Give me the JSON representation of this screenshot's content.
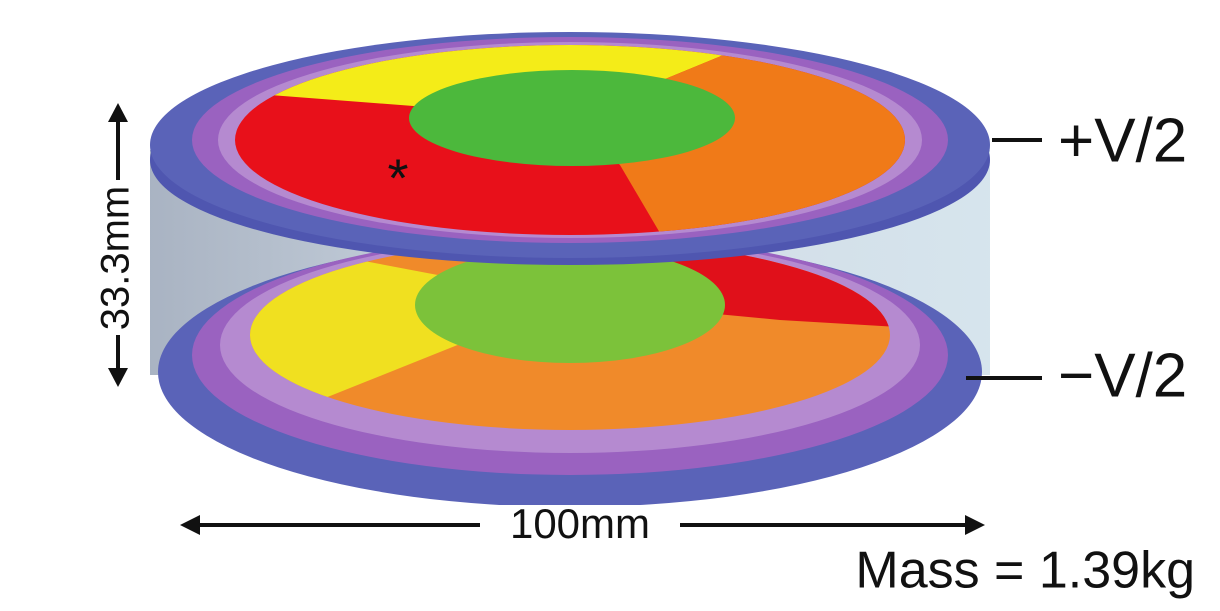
{
  "labels": {
    "height": "33.3mm",
    "top_voltage": "+V/2",
    "bottom_voltage": "−V/2",
    "marker": "*",
    "diameter": "100mm",
    "mass": "Mass = 1.39kg"
  }
}
